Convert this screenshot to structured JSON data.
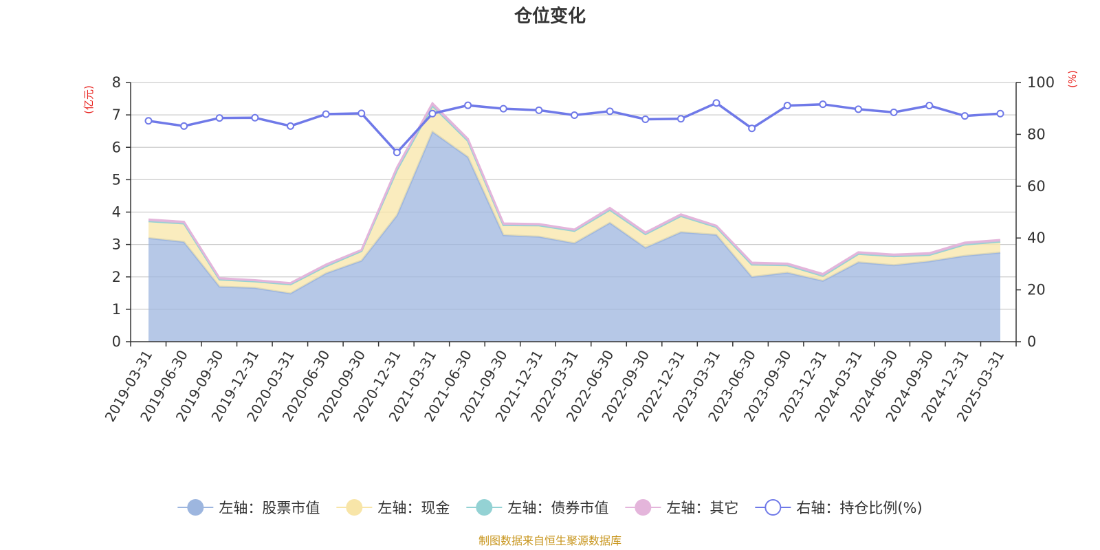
{
  "chart_data": {
    "type": "area",
    "title": "仓位变化",
    "left_axis_unit": "(亿元)",
    "right_axis_unit": "(%)",
    "categories": [
      "2019-03-31",
      "2019-06-30",
      "2019-09-30",
      "2019-12-31",
      "2020-03-31",
      "2020-06-30",
      "2020-09-30",
      "2020-12-31",
      "2021-03-31",
      "2021-06-30",
      "2021-09-30",
      "2021-12-31",
      "2022-03-31",
      "2022-06-30",
      "2022-09-30",
      "2022-12-31",
      "2023-03-31",
      "2023-06-30",
      "2023-09-30",
      "2023-12-31",
      "2024-03-31",
      "2024-06-30",
      "2024-09-30",
      "2024-12-31",
      "2025-03-31"
    ],
    "ylim_left": [
      0,
      8
    ],
    "yticks_left": [
      0,
      1,
      2,
      3,
      4,
      5,
      6,
      7,
      8
    ],
    "ylim_right": [
      0,
      100
    ],
    "yticks_right": [
      0,
      20,
      40,
      60,
      80,
      100
    ],
    "grid": true,
    "legend_position": "bottom",
    "series": [
      {
        "name": "左轴：股票市值",
        "axis": "left",
        "kind": "stacked-area",
        "color": "#9db6df",
        "values": [
          3.2,
          3.08,
          1.7,
          1.66,
          1.49,
          2.11,
          2.5,
          3.9,
          6.48,
          5.7,
          3.29,
          3.24,
          3.04,
          3.67,
          2.9,
          3.38,
          3.3,
          2.0,
          2.13,
          1.88,
          2.45,
          2.36,
          2.48,
          2.65,
          2.75
        ]
      },
      {
        "name": "左轴：现金",
        "axis": "left",
        "kind": "stacked-area",
        "color": "#f8e5a8",
        "values": [
          0.52,
          0.57,
          0.22,
          0.2,
          0.28,
          0.22,
          0.3,
          1.4,
          0.8,
          0.5,
          0.31,
          0.35,
          0.38,
          0.4,
          0.42,
          0.5,
          0.24,
          0.38,
          0.23,
          0.15,
          0.26,
          0.28,
          0.2,
          0.35,
          0.34
        ]
      },
      {
        "name": "左轴：债券市值",
        "axis": "left",
        "kind": "stacked-area",
        "color": "#94d2d4",
        "values": [
          0,
          0,
          0,
          0,
          0,
          0,
          0,
          0,
          0,
          0,
          0,
          0,
          0,
          0,
          0,
          0,
          0,
          0,
          0,
          0,
          0,
          0,
          0,
          0,
          0
        ]
      },
      {
        "name": "左轴：其它",
        "axis": "left",
        "kind": "stacked-area",
        "color": "#e4b5db",
        "values": [
          0.05,
          0.05,
          0.04,
          0.04,
          0.04,
          0.05,
          0.03,
          0.08,
          0.08,
          0.06,
          0.05,
          0.04,
          0.04,
          0.06,
          0.05,
          0.05,
          0.04,
          0.06,
          0.05,
          0.06,
          0.05,
          0.05,
          0.05,
          0.06,
          0.05
        ]
      },
      {
        "name": "右轴：持仓比例(%)",
        "axis": "right",
        "kind": "line",
        "color": "#6f79e8",
        "values": [
          85.2,
          83.2,
          86.3,
          86.4,
          83.2,
          87.8,
          88.1,
          73.0,
          88.0,
          91.2,
          89.9,
          89.3,
          87.4,
          88.9,
          85.8,
          86.0,
          92.1,
          82.3,
          91.1,
          91.6,
          89.7,
          88.5,
          91.1,
          87.1,
          88.0
        ]
      }
    ]
  },
  "legend": [
    {
      "label": "左轴：股票市值",
      "color": "#9db6df",
      "style": "filled"
    },
    {
      "label": "左轴：现金",
      "color": "#f8e5a8",
      "style": "filled"
    },
    {
      "label": "左轴：债券市值",
      "color": "#94d2d4",
      "style": "filled"
    },
    {
      "label": "左轴：其它",
      "color": "#e4b5db",
      "style": "filled"
    },
    {
      "label": "右轴：持仓比例(%)",
      "color": "#6f79e8",
      "style": "hollow"
    }
  ],
  "source_text": "制图数据来自恒生聚源数据库"
}
